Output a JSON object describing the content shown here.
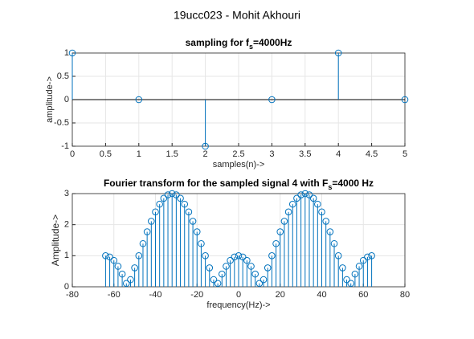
{
  "suptitle": "19ucc023 - Mohit Akhouri",
  "chart_data": [
    {
      "type": "stem",
      "title_parts": [
        "sampling for f",
        "s",
        "=4000Hz"
      ],
      "xlabel": "samples(n)->",
      "ylabel": "amplitude->",
      "x": [
        0,
        1,
        2,
        3,
        4,
        5
      ],
      "values": [
        1,
        0,
        -1,
        0,
        1,
        0
      ],
      "color": "#0072bd",
      "baseline": true,
      "xlim": [
        0,
        5
      ],
      "xticks": [
        0,
        0.5,
        1,
        1.5,
        2,
        2.5,
        3,
        3.5,
        4,
        4.5,
        5
      ],
      "ylim": [
        -1,
        1
      ],
      "yticks": [
        -1,
        -0.5,
        0,
        0.5,
        1
      ],
      "grid": true
    },
    {
      "type": "stem",
      "title_parts": [
        "Fourier transform for the sampled signal 4 with F",
        "s",
        "=4000 Hz"
      ],
      "xlabel": "frequency(Hz)->",
      "ylabel": "Amplitude->",
      "x": [
        -64,
        -62,
        -60,
        -58,
        -56,
        -54,
        -52,
        -50,
        -48,
        -46,
        -44,
        -42,
        -40,
        -38,
        -36,
        -34,
        -32,
        -30,
        -28,
        -26,
        -24,
        -22,
        -20,
        -18,
        -16,
        -14,
        -12,
        -10,
        -8,
        -6,
        -4,
        -2,
        0,
        2,
        4,
        6,
        8,
        10,
        12,
        14,
        16,
        18,
        20,
        22,
        24,
        26,
        28,
        30,
        32,
        34,
        36,
        38,
        40,
        42,
        44,
        46,
        48,
        50,
        52,
        54,
        56,
        58,
        60,
        62,
        64
      ],
      "values": [
        1,
        0.96,
        0.85,
        0.66,
        0.41,
        0.11,
        0.23,
        0.61,
        1,
        1.39,
        1.77,
        2.11,
        2.41,
        2.66,
        2.85,
        2.96,
        3,
        2.96,
        2.85,
        2.66,
        2.41,
        2.11,
        1.77,
        1.39,
        1,
        0.61,
        0.23,
        0.11,
        0.41,
        0.66,
        0.85,
        0.96,
        1,
        0.96,
        0.85,
        0.66,
        0.41,
        0.11,
        0.23,
        0.61,
        1,
        1.39,
        1.77,
        2.11,
        2.41,
        2.66,
        2.85,
        2.96,
        3,
        2.96,
        2.85,
        2.66,
        2.41,
        2.11,
        1.77,
        1.39,
        1,
        0.61,
        0.23,
        0.11,
        0.41,
        0.66,
        0.85,
        0.96,
        1
      ],
      "color": "#0072bd",
      "baseline": false,
      "xlim": [
        -80,
        80
      ],
      "xticks": [
        -80,
        -60,
        -40,
        -20,
        0,
        20,
        40,
        60,
        80
      ],
      "ylim": [
        0,
        3
      ],
      "yticks": [
        0,
        1,
        2,
        3
      ],
      "grid": true
    }
  ]
}
